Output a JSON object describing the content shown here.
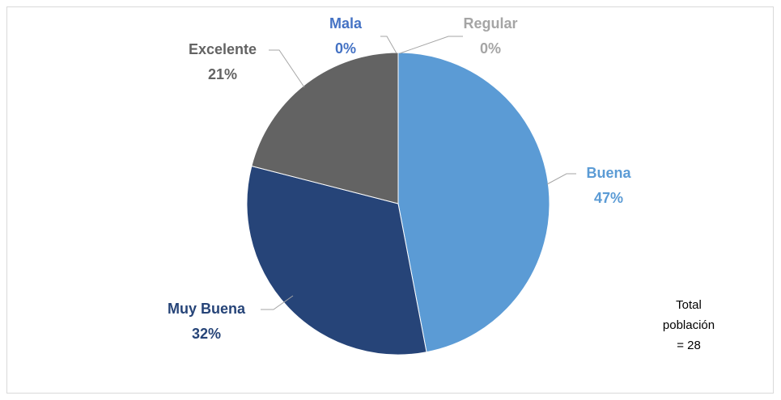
{
  "chart_data": {
    "type": "pie",
    "categories": [
      "Mala",
      "Regular",
      "Buena",
      "Muy Buena",
      "Excelente"
    ],
    "values": [
      0,
      0,
      47,
      32,
      21
    ],
    "value_labels": [
      "0%",
      "0%",
      "47%",
      "32%",
      "21%"
    ],
    "colors": [
      "#4472c4",
      "#a5a5a5",
      "#5b9bd5",
      "#264478",
      "#636363"
    ],
    "annotation": [
      "Total",
      "población",
      "= 28"
    ]
  }
}
